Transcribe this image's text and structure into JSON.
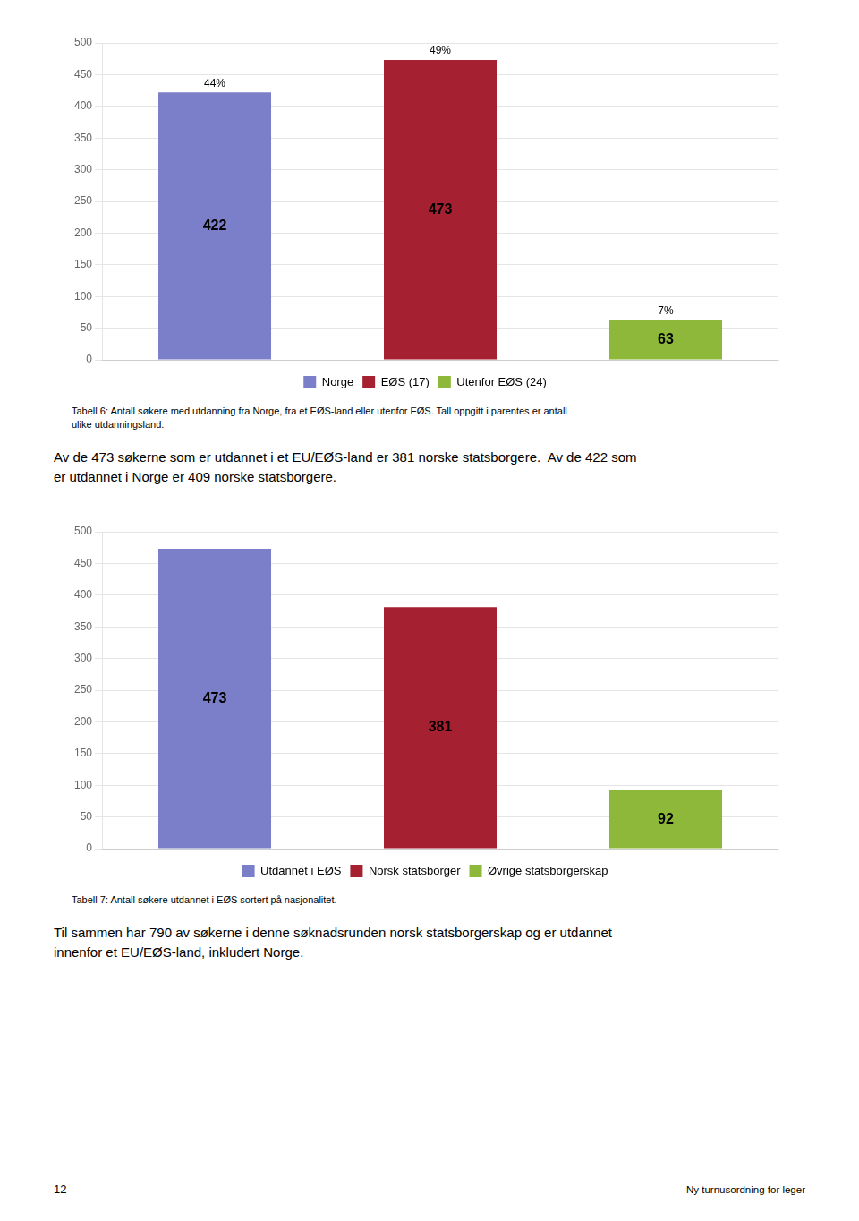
{
  "chart_data": [
    {
      "type": "bar",
      "categories": [
        "Norge",
        "EØS (17)",
        "Utenfor EØS (24)"
      ],
      "values": [
        422,
        473,
        63
      ],
      "colors": [
        "#7b7ec8",
        "#a52030",
        "#8db83a"
      ],
      "percent_labels": [
        "44%",
        "49%",
        "7%"
      ],
      "ylim": [
        0,
        500
      ],
      "yticks": [
        0,
        50,
        100,
        150,
        200,
        250,
        300,
        350,
        400,
        450,
        500
      ],
      "grid": true,
      "legend": "bottom",
      "data_labels": true,
      "tick_labels": "y",
      "caption": [
        "Tabell 6: Antall søkere med utdanning fra Norge, fra et EØS-land eller utenfor EØS. Tall oppgitt i parentes er antall",
        "ulike utdanningsland."
      ],
      "paragraph": [
        "Av de 473 søkerne som er utdannet i et EU/EØS-land er 381 norske statsborgere.  Av de 422 som",
        "er utdannet i Norge er 409 norske statsborgere."
      ]
    },
    {
      "type": "bar",
      "categories": [
        "Utdannet i EØS",
        "Norsk statsborger",
        "Øvrige statsborgerskap"
      ],
      "values": [
        473,
        381,
        92
      ],
      "colors": [
        "#7b7ec8",
        "#a52030",
        "#8db83a"
      ],
      "ylim": [
        0,
        500
      ],
      "yticks": [
        0,
        50,
        100,
        150,
        200,
        250,
        300,
        350,
        400,
        450,
        500
      ],
      "grid": true,
      "legend": "bottom",
      "data_labels": true,
      "tick_labels": "y",
      "caption": [
        "Tabell 7: Antall søkere utdannet i EØS sortert på nasjonalitet."
      ],
      "paragraph": [
        "Til sammen har 790 av søkerne i denne søknadsrunden norsk statsborgerskap og er utdannet",
        "innenfor et EU/EØS-land, inkludert Norge."
      ]
    }
  ],
  "page_number": "12",
  "page_footer": "Ny turnusordning for leger"
}
